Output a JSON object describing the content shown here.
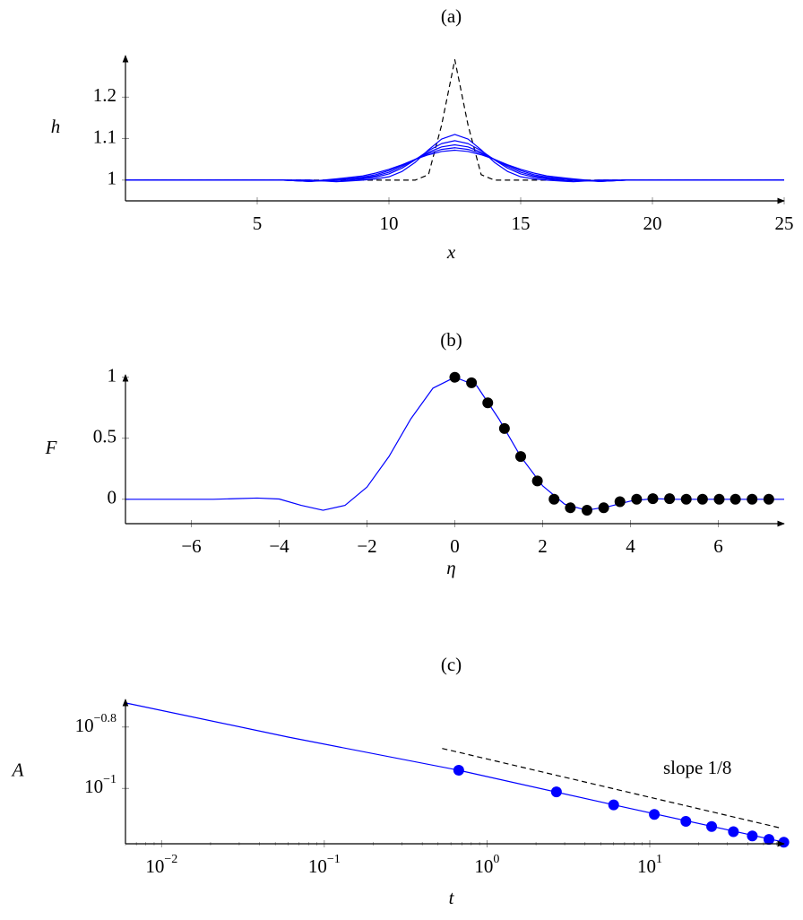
{
  "chart_data": [
    {
      "type": "line",
      "title": "(a)",
      "x_label": "x",
      "y_label": "h",
      "xlim": [
        0,
        25
      ],
      "ylim": [
        0.95,
        1.3
      ],
      "xticks": [
        5,
        10,
        15,
        20,
        25
      ],
      "yticks": [
        1,
        1.1,
        1.2
      ],
      "x": [
        0,
        2,
        4,
        6,
        7,
        8,
        9,
        9.5,
        10,
        10.5,
        11,
        11.5,
        12,
        12.5,
        13,
        13.5,
        14,
        14.5,
        15,
        15.5,
        16,
        17,
        18,
        19,
        21,
        23,
        25
      ],
      "series": [
        {
          "color": "#000000",
          "style": "dashed",
          "values": [
            1,
            1,
            1,
            1,
            1,
            1,
            1,
            1,
            1,
            1,
            1,
            1.013,
            1.133,
            1.29,
            1.133,
            1.013,
            1,
            1,
            1,
            1,
            1,
            1,
            1,
            1,
            1,
            1,
            1
          ]
        },
        {
          "color": "#0000ff",
          "values": [
            1,
            1,
            1,
            1,
            1,
            0.996,
            1,
            1.003,
            1.008,
            1.021,
            1.043,
            1.073,
            1.099,
            1.11,
            1.099,
            1.073,
            1.043,
            1.021,
            1.008,
            1.003,
            1,
            0.996,
            1,
            1,
            1,
            1,
            1
          ]
        },
        {
          "color": "#0000ff",
          "values": [
            1,
            1,
            1,
            1,
            1,
            0.997,
            1.003,
            1.007,
            1.015,
            1.029,
            1.049,
            1.071,
            1.088,
            1.095,
            1.088,
            1.071,
            1.049,
            1.029,
            1.015,
            1.007,
            1.003,
            0.997,
            1,
            1,
            1,
            1,
            1
          ]
        },
        {
          "color": "#0000ff",
          "values": [
            1,
            1,
            1,
            1,
            0.997,
            1,
            1.005,
            1.01,
            1.019,
            1.033,
            1.05,
            1.067,
            1.08,
            1.085,
            1.08,
            1.067,
            1.05,
            1.033,
            1.019,
            1.01,
            1.005,
            1,
            0.997,
            1,
            1,
            1,
            1
          ]
        },
        {
          "color": "#0000ff",
          "values": [
            1,
            1,
            1,
            1,
            0.997,
            1.001,
            1.007,
            1.013,
            1.023,
            1.036,
            1.05,
            1.064,
            1.074,
            1.078,
            1.074,
            1.064,
            1.05,
            1.036,
            1.023,
            1.013,
            1.007,
            1.001,
            0.997,
            1,
            1,
            1,
            1
          ]
        },
        {
          "color": "#0000ff",
          "values": [
            1,
            1,
            1,
            1,
            0.997,
            1.003,
            1.01,
            1.017,
            1.026,
            1.037,
            1.05,
            1.061,
            1.069,
            1.072,
            1.069,
            1.061,
            1.05,
            1.037,
            1.026,
            1.017,
            1.01,
            1.003,
            0.997,
            1,
            1,
            1,
            1
          ]
        }
      ]
    },
    {
      "type": "line",
      "title": "(b)",
      "x_label": "η",
      "y_label": "F",
      "xlim": [
        -7.5,
        7.5
      ],
      "ylim": [
        -0.2,
        1.02
      ],
      "xticks": [
        {
          "value": -6,
          "label": "−6"
        },
        {
          "value": -4,
          "label": "−4"
        },
        {
          "value": -2,
          "label": "−2"
        },
        0,
        2,
        4,
        6
      ],
      "yticks": [
        0,
        0.5,
        1
      ],
      "series": [
        {
          "color": "#0000ff",
          "x": [
            -7.5,
            -7,
            -6.5,
            -6,
            -5.5,
            -5,
            -4.5,
            -4,
            -3.5,
            -3,
            -2.5,
            -2,
            -1.5,
            -1,
            -0.5,
            0,
            0.5,
            1,
            1.5,
            2,
            2.5,
            3,
            3.5,
            4,
            4.5,
            5,
            5.5,
            6,
            6.5,
            7,
            7.5
          ],
          "values": [
            0,
            0,
            0,
            0,
            0,
            0.005,
            0.01,
            0.002,
            -0.05,
            -0.09,
            -0.05,
            0.1,
            0.35,
            0.66,
            0.91,
            1,
            0.93,
            0.66,
            0.35,
            0.11,
            -0.04,
            -0.09,
            -0.06,
            -0.015,
            0.005,
            0,
            0,
            0,
            0,
            0,
            0
          ]
        },
        {
          "color": "#000000",
          "marker": true,
          "x": [
            0,
            0.38,
            0.75,
            1.13,
            1.5,
            1.88,
            2.26,
            2.63,
            3.01,
            3.39,
            3.76,
            4.14,
            4.51,
            4.89,
            5.27,
            5.64,
            6.02,
            6.39,
            6.77,
            7.15
          ],
          "values": [
            1,
            0.955,
            0.79,
            0.58,
            0.35,
            0.15,
            0,
            -0.07,
            -0.09,
            -0.07,
            -0.02,
            0,
            0.005,
            0.005,
            0,
            0,
            0,
            0,
            0,
            0
          ]
        }
      ]
    },
    {
      "type": "line",
      "title": "(c)",
      "x_label": "t",
      "y_label": "A",
      "xlog": true,
      "ylog": true,
      "xlim": [
        0.006,
        67
      ],
      "ylim": [
        0.066,
        0.195
      ],
      "xticks": [
        {
          "value": 0.01,
          "label": "10",
          "exponent": "−2"
        },
        {
          "value": 0.1,
          "label": "10",
          "exponent": "−1"
        },
        {
          "value": 1,
          "label": "10",
          "exponent": "0"
        },
        {
          "value": 10,
          "label": "10",
          "exponent": "1"
        }
      ],
      "xminorticks": [
        0.006,
        0.007,
        0.008,
        0.009,
        0.02,
        0.03,
        0.04,
        0.05,
        0.06,
        0.07,
        0.08,
        0.09,
        0.2,
        0.3,
        0.4,
        0.5,
        0.6,
        0.7,
        0.8,
        0.9,
        2,
        3,
        4,
        5,
        6,
        7,
        8,
        9,
        20,
        30,
        40,
        50,
        60
      ],
      "yticks": [
        {
          "value": 0.1585,
          "label": "10",
          "exponent": "−0.8"
        },
        {
          "value": 0.1,
          "label": "10",
          "exponent": "−1"
        }
      ],
      "annotation": "slope 1/8",
      "series": [
        {
          "color": "#0000ff",
          "x": [
            0.006,
            0.06,
            0.67,
            6,
            66.67
          ],
          "values": [
            0.19,
            0.147,
            0.1146,
            0.0884,
            0.0668
          ]
        },
        {
          "color": "#0000ff",
          "marker": true,
          "x": [
            0.67,
            2.67,
            6,
            10.67,
            16.67,
            24,
            32.67,
            42.67,
            54,
            66.67
          ],
          "values": [
            0.1146,
            0.0974,
            0.0884,
            0.0823,
            0.0781,
            0.0751,
            0.0723,
            0.07,
            0.0682,
            0.0668
          ]
        },
        {
          "color": "#000000",
          "style": "dashed",
          "x": [
            0.53,
            65
          ],
          "values": [
            0.135,
            0.0741
          ]
        }
      ]
    }
  ]
}
